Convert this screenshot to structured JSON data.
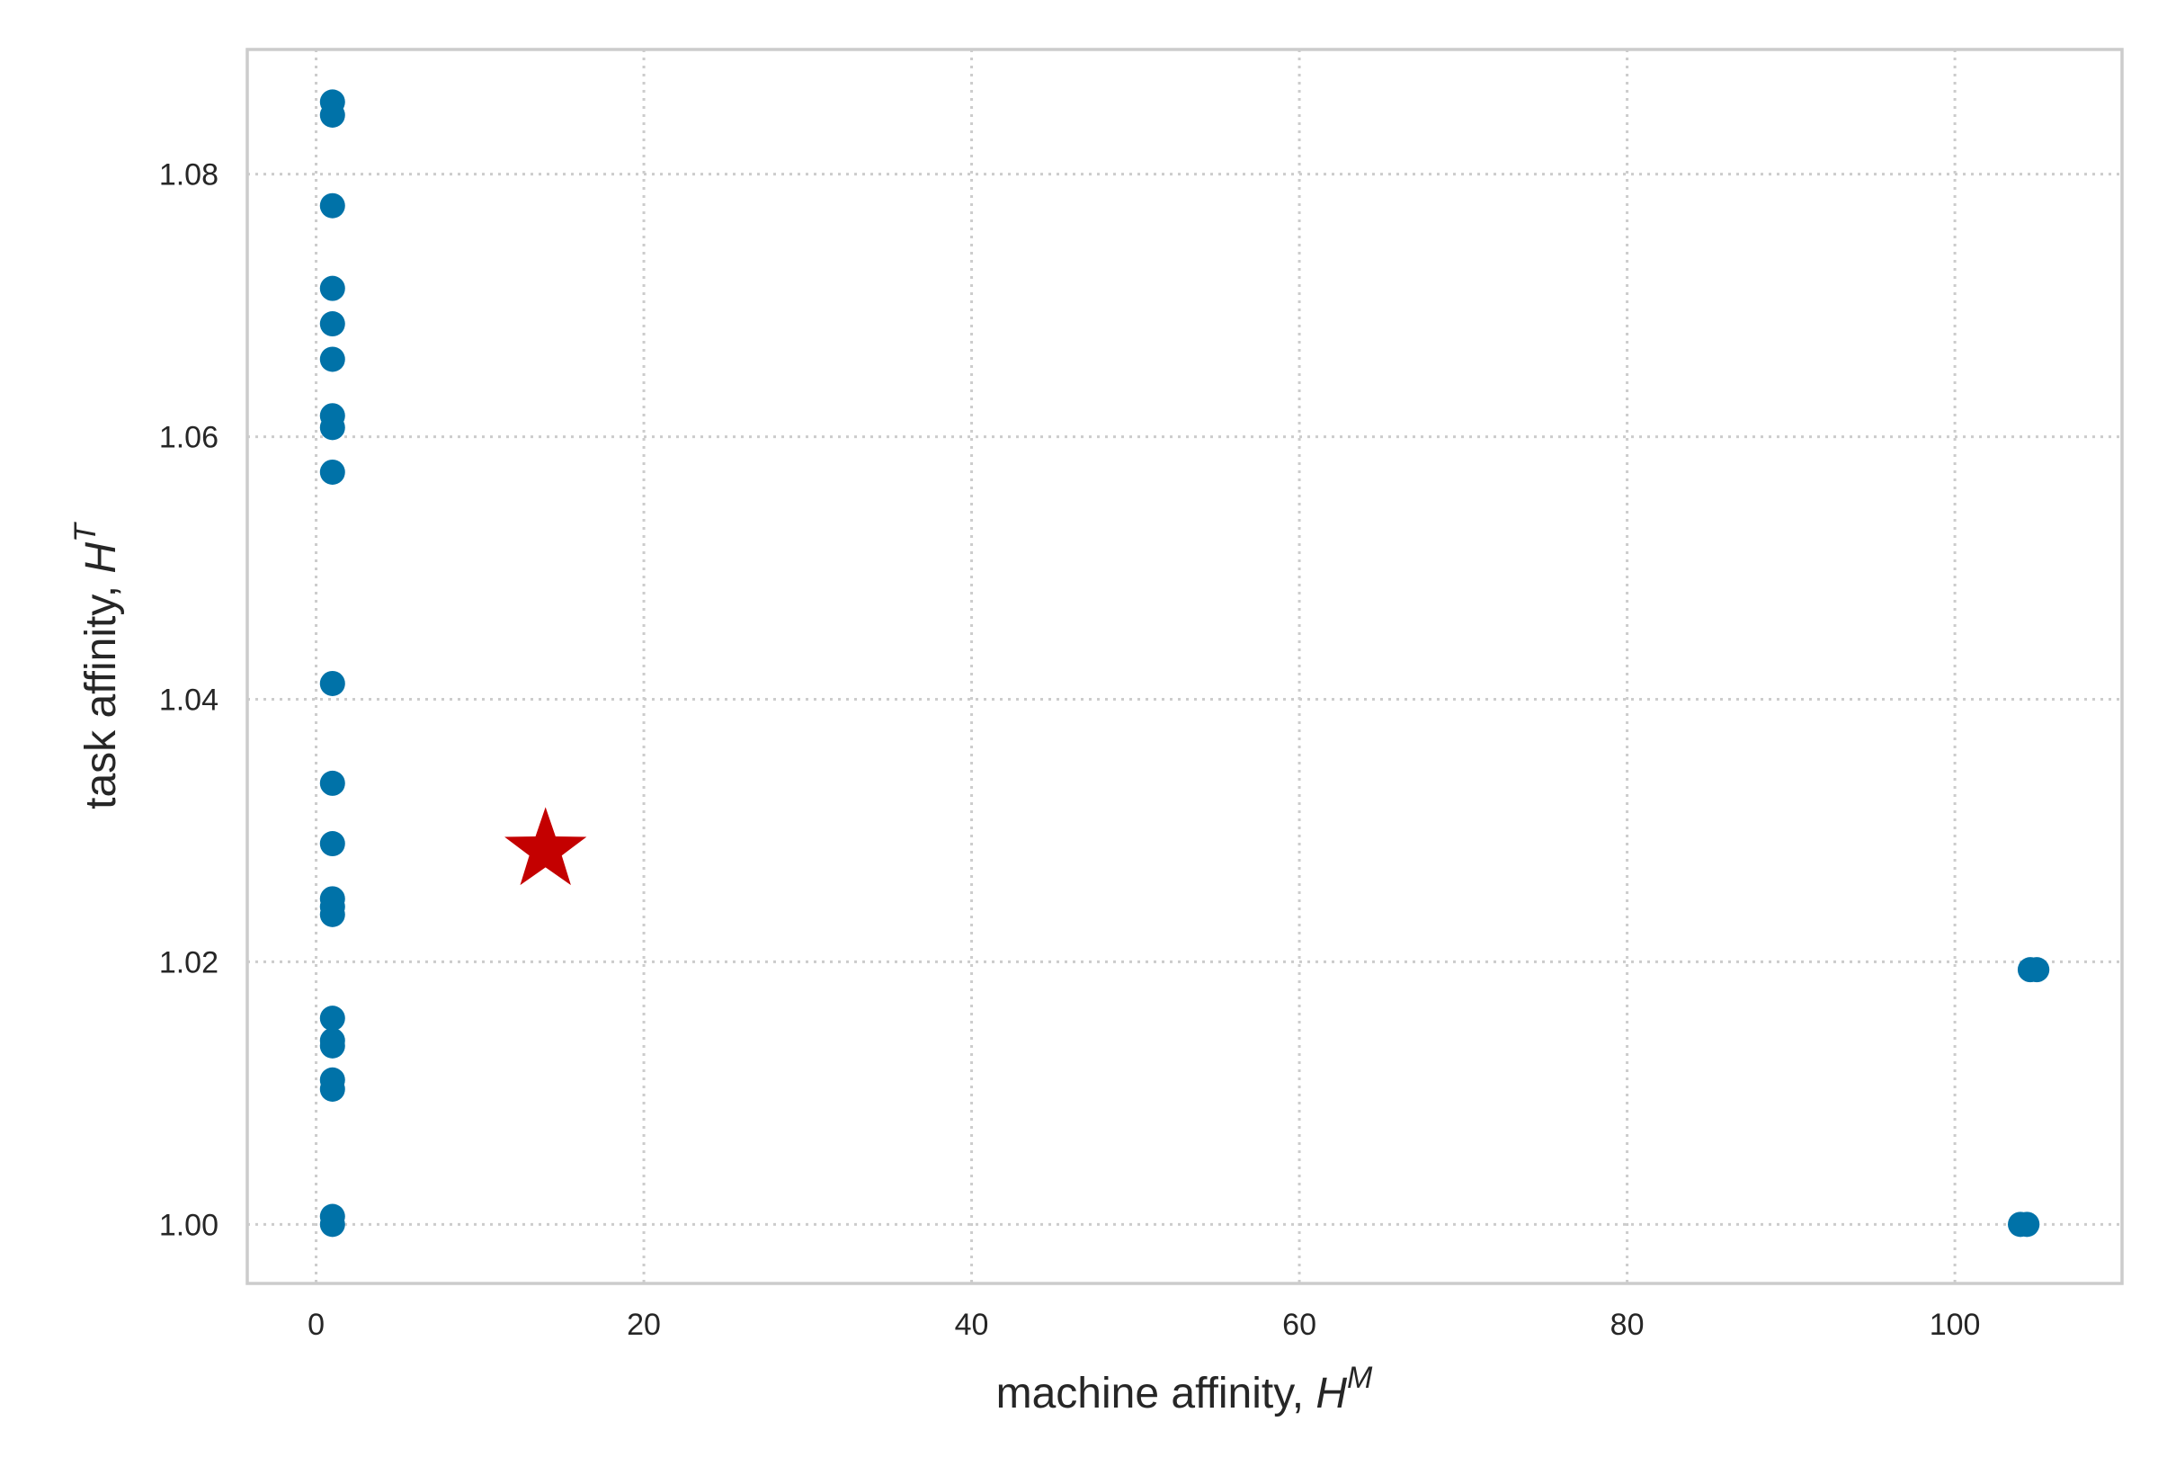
{
  "chart_data": {
    "type": "scatter",
    "title": "",
    "xlabel": {
      "text": "machine affinity, ",
      "var": "H",
      "sup": "M"
    },
    "ylabel": {
      "text": "task affinity, ",
      "var": "H",
      "sup": "T"
    },
    "xlim": [
      -4.2,
      110.2
    ],
    "ylim": [
      0.9955,
      1.0895
    ],
    "xticks": [
      0,
      20,
      40,
      60,
      80,
      100
    ],
    "xtick_labels": [
      "0",
      "20",
      "40",
      "60",
      "80",
      "100"
    ],
    "yticks": [
      1.0,
      1.02,
      1.04,
      1.06,
      1.08
    ],
    "ytick_labels": [
      "1.00",
      "1.02",
      "1.04",
      "1.06",
      "1.08"
    ],
    "grid": true,
    "series": [
      {
        "marker": "circle",
        "color": "#0072a8",
        "points": [
          {
            "x": 1.0,
            "y": 1.0855
          },
          {
            "x": 1.0,
            "y": 1.0845
          },
          {
            "x": 1.0,
            "y": 1.0776
          },
          {
            "x": 1.0,
            "y": 1.0713
          },
          {
            "x": 1.0,
            "y": 1.0686
          },
          {
            "x": 1.0,
            "y": 1.0659
          },
          {
            "x": 1.0,
            "y": 1.0616
          },
          {
            "x": 1.0,
            "y": 1.0607
          },
          {
            "x": 1.0,
            "y": 1.0573
          },
          {
            "x": 1.0,
            "y": 1.0412
          },
          {
            "x": 1.0,
            "y": 1.0336
          },
          {
            "x": 1.0,
            "y": 1.029
          },
          {
            "x": 1.0,
            "y": 1.0248
          },
          {
            "x": 1.0,
            "y": 1.0242
          },
          {
            "x": 1.0,
            "y": 1.0236
          },
          {
            "x": 1.0,
            "y": 1.0157
          },
          {
            "x": 1.0,
            "y": 1.014
          },
          {
            "x": 1.0,
            "y": 1.0136
          },
          {
            "x": 1.0,
            "y": 1.011
          },
          {
            "x": 1.0,
            "y": 1.0103
          },
          {
            "x": 1.0,
            "y": 1.0006
          },
          {
            "x": 1.0,
            "y": 1.0
          },
          {
            "x": 104.0,
            "y": 1.0
          },
          {
            "x": 104.4,
            "y": 1.0
          },
          {
            "x": 104.6,
            "y": 1.0194
          },
          {
            "x": 105.0,
            "y": 1.0194
          }
        ]
      },
      {
        "marker": "star",
        "color": "#c40000",
        "points": [
          {
            "x": 14.0,
            "y": 1.0285
          }
        ]
      }
    ]
  }
}
